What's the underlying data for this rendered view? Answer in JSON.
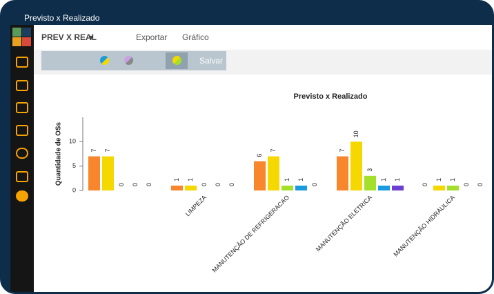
{
  "window": {
    "title": "Previsto x Realizado"
  },
  "toolbar": {
    "report": "PREV X REAL",
    "export": "Exportar",
    "chart": "Gráfico",
    "save": "Salvar"
  },
  "chart_data": {
    "type": "bar",
    "title": "Previsto x Realizado",
    "ylabel": "Quantidade de OSs",
    "categories": [
      null,
      "LIMPEZA",
      "MANUTENÇÃO DE REFRIGERACAO",
      "MANUTENÇÃO ELETRICA",
      "MANUTENÇÃO HIDRÁULICA"
    ],
    "series": [
      {
        "color": "#f7862c",
        "values": [
          7,
          1,
          6,
          7,
          0
        ]
      },
      {
        "color": "#f5d800",
        "values": [
          7,
          1,
          7,
          10,
          1
        ]
      },
      {
        "color": "#a4e02b",
        "values": [
          0,
          0,
          1,
          3,
          1
        ]
      },
      {
        "color": "#1a9be0",
        "values": [
          0,
          0,
          1,
          1,
          0
        ]
      },
      {
        "color": "#6a3fd1",
        "values": [
          0,
          0,
          0,
          1,
          0
        ]
      }
    ],
    "ylim": [
      0,
      15
    ],
    "yticks": [
      0,
      5,
      10
    ]
  }
}
